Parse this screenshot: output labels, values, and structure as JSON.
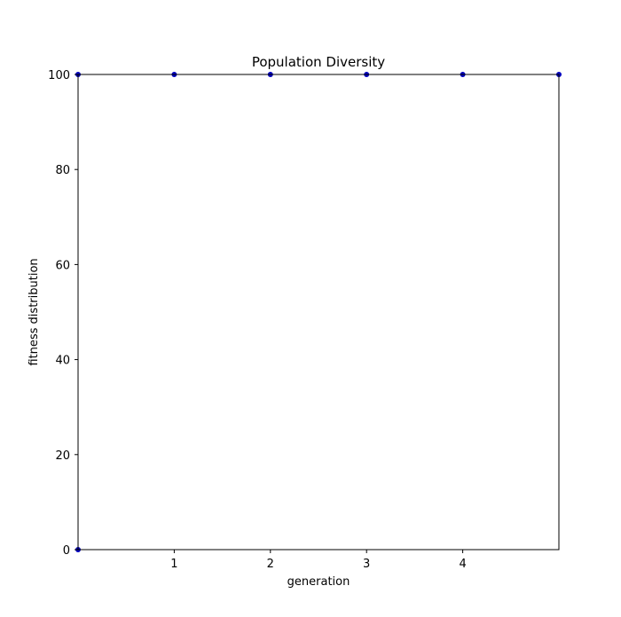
{
  "chart_data": {
    "type": "scatter",
    "title": "Population Diversity",
    "xlabel": "generation",
    "ylabel": "fitness distribution",
    "xlim": [
      0,
      5
    ],
    "ylim": [
      0,
      100
    ],
    "xticks": [
      1,
      2,
      3,
      4
    ],
    "xtick_labels": [
      "1",
      "2",
      "3",
      "4"
    ],
    "yticks": [
      0,
      20,
      40,
      60,
      80,
      100
    ],
    "ytick_labels": [
      "0",
      "20",
      "40",
      "60",
      "80",
      "100"
    ],
    "grid": false,
    "series": [
      {
        "x": [
          0,
          0,
          1,
          2,
          3,
          4,
          5
        ],
        "y": [
          0,
          100,
          100,
          100,
          100,
          100,
          100
        ],
        "color": "#0000bf"
      }
    ]
  }
}
